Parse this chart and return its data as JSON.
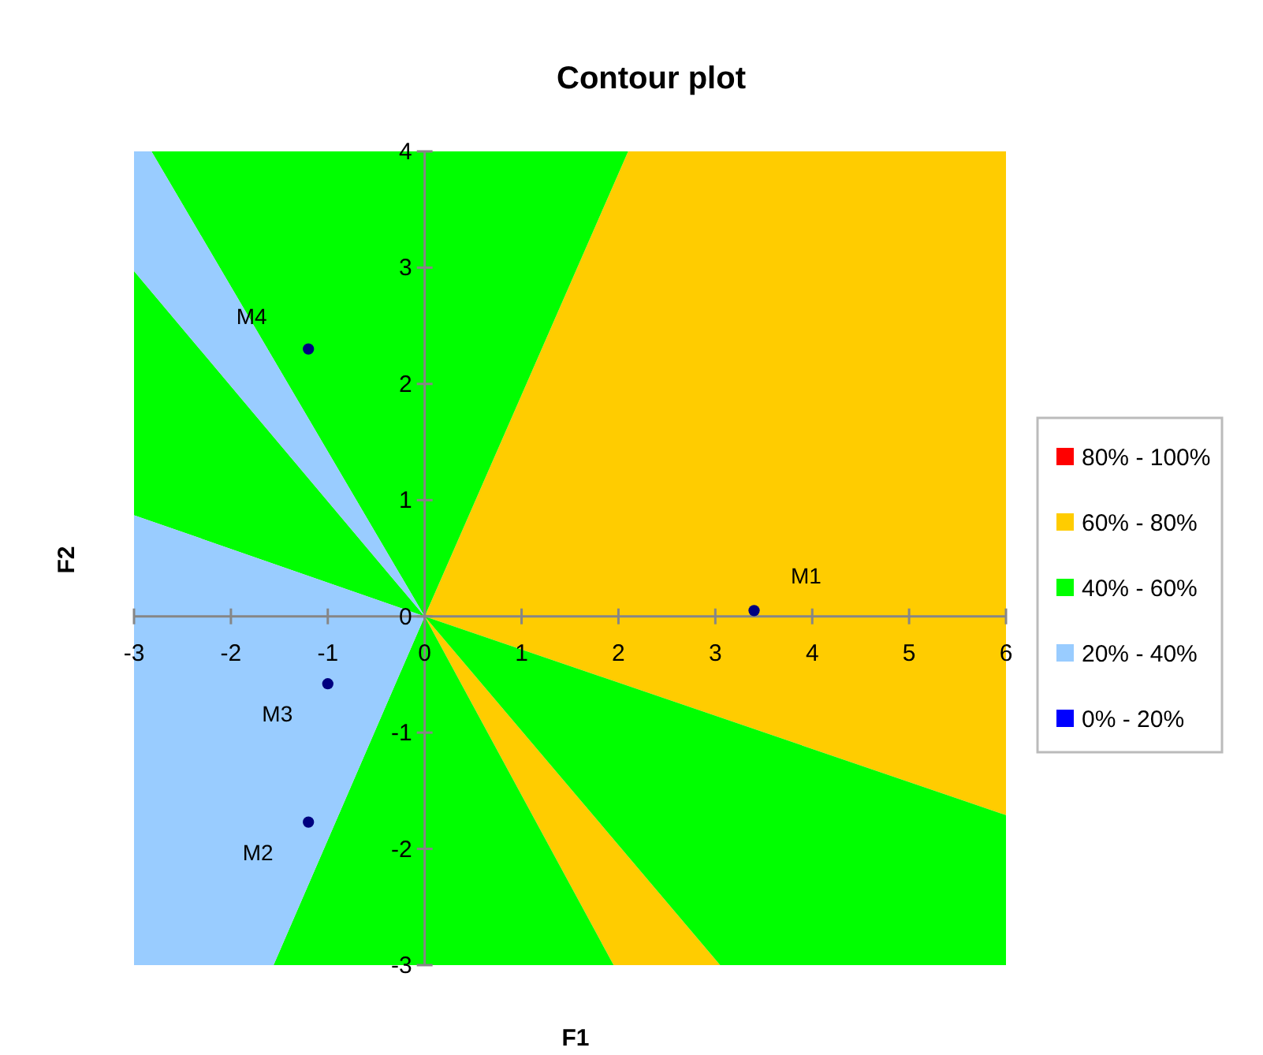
{
  "chart_data": {
    "type": "scatter",
    "title": "Contour plot",
    "xlabel": "F1",
    "ylabel": "F2",
    "xlim": [
      -3,
      6
    ],
    "ylim": [
      -3,
      4
    ],
    "xticks": [
      -3,
      -2,
      -1,
      0,
      1,
      2,
      3,
      4,
      5,
      6
    ],
    "yticks": [
      -3,
      -2,
      -1,
      0,
      1,
      2,
      3,
      4
    ],
    "grid": false,
    "legend": "right",
    "series": [
      {
        "name": "80% - 100%",
        "type": "area",
        "color": "#ff0000"
      },
      {
        "name": "60% - 80%",
        "type": "area",
        "color": "#ffcc00",
        "x": [
          0,
          2.1,
          6,
          6,
          null,
          0,
          1.95,
          3.05
        ],
        "values": [
          0,
          4,
          4,
          -1.71,
          null,
          0,
          -3,
          -3
        ]
      },
      {
        "name": "40% - 60%",
        "type": "area",
        "color": "#00ff00",
        "x": [
          0,
          -2.82,
          2.1,
          null,
          0,
          -3,
          -3,
          null,
          0,
          -1.56,
          1.95,
          null,
          0,
          3.05,
          6,
          6
        ],
        "values": [
          0,
          4,
          4,
          null,
          0,
          2.97,
          0.87,
          null,
          0,
          -3,
          -3,
          null,
          0,
          -3,
          -3,
          -1.71
        ]
      },
      {
        "name": "20% - 40%",
        "type": "area",
        "color": "#99ccff",
        "x": [
          0,
          -3,
          -3,
          -2.82,
          null,
          0,
          -3,
          -3,
          -1.56
        ],
        "values": [
          0,
          2.97,
          4,
          4,
          null,
          0,
          0.87,
          -3,
          -3
        ]
      },
      {
        "name": "0% - 20%",
        "type": "area",
        "color": "#0000ff"
      },
      {
        "marker": "circle",
        "color": "#000080",
        "x": [
          3.4,
          -1.2,
          -1.0,
          -1.2
        ],
        "values": [
          0.05,
          -1.77,
          -0.58,
          2.3
        ]
      }
    ],
    "annotations": [
      {
        "text": "M1",
        "x": 3.4,
        "y": 0.05
      },
      {
        "text": "M2",
        "x": -1.2,
        "y": -1.77
      },
      {
        "text": "M3",
        "x": -1.0,
        "y": -0.58
      },
      {
        "text": "M4",
        "x": -1.2,
        "y": 2.3
      }
    ]
  }
}
